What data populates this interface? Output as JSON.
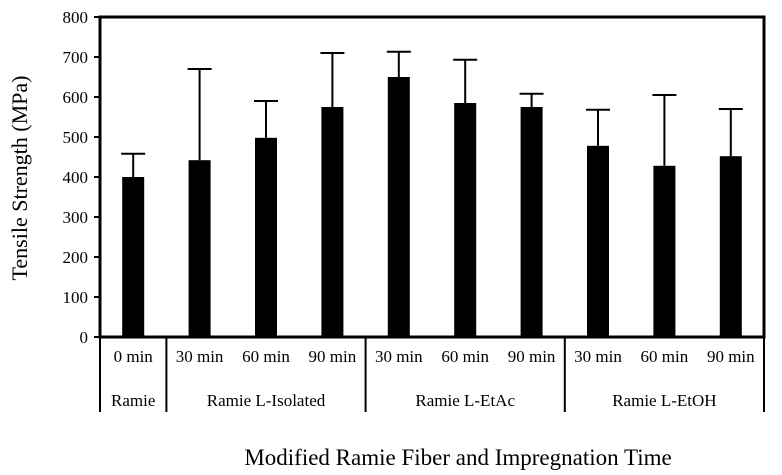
{
  "chart_data": {
    "type": "bar",
    "title": "",
    "xlabel": "Modified Ramie Fiber and Impregnation Time",
    "ylabel": "Tensile Strength (MPa)",
    "ylim": [
      0,
      800
    ],
    "yticks": [
      0,
      100,
      200,
      300,
      400,
      500,
      600,
      700,
      800
    ],
    "grid": false,
    "error_bars": "upper",
    "categories": [
      "0 min",
      "30 min",
      "60 min",
      "90 min",
      "30 min",
      "60 min",
      "90 min",
      "30 min",
      "60 min",
      "90 min"
    ],
    "groups": [
      {
        "name": "Ramie",
        "size": 1
      },
      {
        "name": "Ramie L-Isolated",
        "size": 3
      },
      {
        "name": "Ramie L-EtAc",
        "size": 3
      },
      {
        "name": "Ramie L-EtOH",
        "size": 3
      }
    ],
    "values": [
      400,
      442,
      498,
      575,
      650,
      585,
      575,
      478,
      428,
      452
    ],
    "errors": [
      58,
      228,
      92,
      135,
      63,
      108,
      33,
      90,
      177,
      118
    ]
  }
}
